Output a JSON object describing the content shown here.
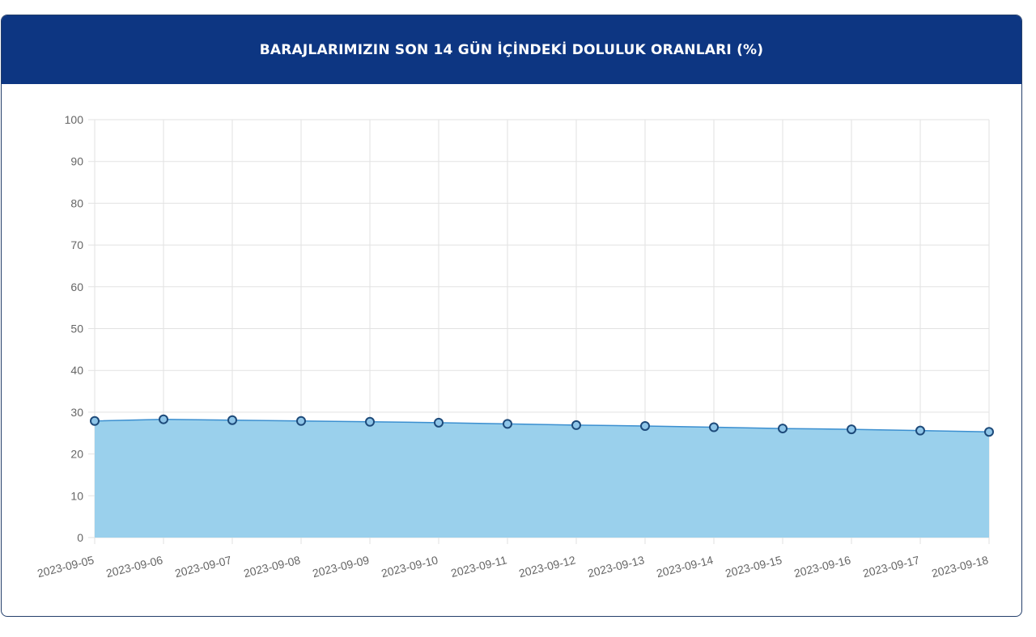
{
  "header": {
    "title": "BARAJLARIMIZIN SON 14 GÜN İÇİNDEKİ DOLULUK ORANLARI (%)"
  },
  "colors": {
    "header_bg": "#0d3682",
    "fill": "#9ad0ec",
    "line": "#3b8fd0",
    "marker": "#1d4a7a"
  },
  "chart_data": {
    "type": "area",
    "title": "BARAJLARIMIZIN SON 14 GÜN İÇİNDEKİ DOLULUK ORANLARI (%)",
    "categories": [
      "2023-09-05",
      "2023-09-06",
      "2023-09-07",
      "2023-09-08",
      "2023-09-09",
      "2023-09-10",
      "2023-09-11",
      "2023-09-12",
      "2023-09-13",
      "2023-09-14",
      "2023-09-15",
      "2023-09-16",
      "2023-09-17",
      "2023-09-18"
    ],
    "values": [
      27.9,
      28.3,
      28.1,
      27.9,
      27.7,
      27.5,
      27.2,
      26.9,
      26.7,
      26.4,
      26.1,
      25.9,
      25.6,
      25.3
    ],
    "ylim": [
      0,
      100
    ],
    "yticks": [
      0,
      10,
      20,
      30,
      40,
      50,
      60,
      70,
      80,
      90,
      100
    ],
    "xlabel": "",
    "ylabel": "",
    "grid": true,
    "legend": "none"
  }
}
